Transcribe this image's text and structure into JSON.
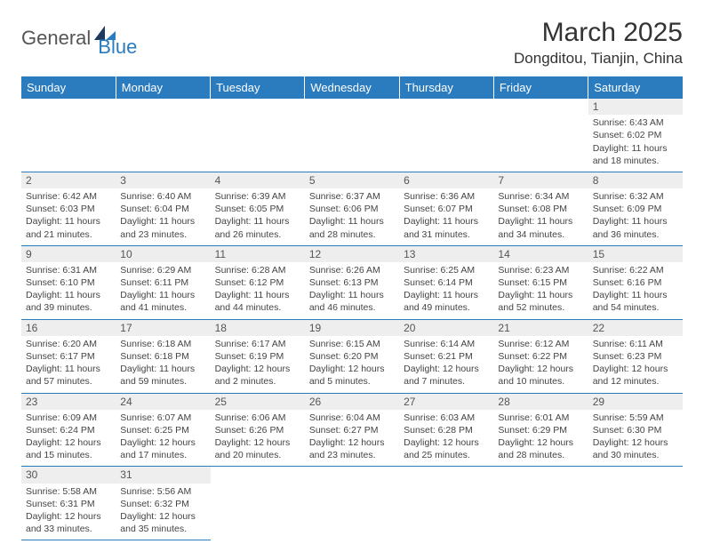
{
  "brand": {
    "general": "General",
    "blue": "Blue"
  },
  "title": "March 2025",
  "location": "Dongditou, Tianjin, China",
  "colors": {
    "header_bg": "#2b7bbf",
    "header_text": "#ffffff",
    "border": "#2b7bbf",
    "daynum_bg": "#eeeeee",
    "body_text": "#444444"
  },
  "weekdays": [
    "Sunday",
    "Monday",
    "Tuesday",
    "Wednesday",
    "Thursday",
    "Friday",
    "Saturday"
  ],
  "weeks": [
    [
      {
        "n": "",
        "e": true
      },
      {
        "n": "",
        "e": true
      },
      {
        "n": "",
        "e": true
      },
      {
        "n": "",
        "e": true
      },
      {
        "n": "",
        "e": true
      },
      {
        "n": "",
        "e": true
      },
      {
        "n": "1",
        "sr": "Sunrise: 6:43 AM",
        "ss": "Sunset: 6:02 PM",
        "d1": "Daylight: 11 hours",
        "d2": "and 18 minutes."
      }
    ],
    [
      {
        "n": "2",
        "sr": "Sunrise: 6:42 AM",
        "ss": "Sunset: 6:03 PM",
        "d1": "Daylight: 11 hours",
        "d2": "and 21 minutes."
      },
      {
        "n": "3",
        "sr": "Sunrise: 6:40 AM",
        "ss": "Sunset: 6:04 PM",
        "d1": "Daylight: 11 hours",
        "d2": "and 23 minutes."
      },
      {
        "n": "4",
        "sr": "Sunrise: 6:39 AM",
        "ss": "Sunset: 6:05 PM",
        "d1": "Daylight: 11 hours",
        "d2": "and 26 minutes."
      },
      {
        "n": "5",
        "sr": "Sunrise: 6:37 AM",
        "ss": "Sunset: 6:06 PM",
        "d1": "Daylight: 11 hours",
        "d2": "and 28 minutes."
      },
      {
        "n": "6",
        "sr": "Sunrise: 6:36 AM",
        "ss": "Sunset: 6:07 PM",
        "d1": "Daylight: 11 hours",
        "d2": "and 31 minutes."
      },
      {
        "n": "7",
        "sr": "Sunrise: 6:34 AM",
        "ss": "Sunset: 6:08 PM",
        "d1": "Daylight: 11 hours",
        "d2": "and 34 minutes."
      },
      {
        "n": "8",
        "sr": "Sunrise: 6:32 AM",
        "ss": "Sunset: 6:09 PM",
        "d1": "Daylight: 11 hours",
        "d2": "and 36 minutes."
      }
    ],
    [
      {
        "n": "9",
        "sr": "Sunrise: 6:31 AM",
        "ss": "Sunset: 6:10 PM",
        "d1": "Daylight: 11 hours",
        "d2": "and 39 minutes."
      },
      {
        "n": "10",
        "sr": "Sunrise: 6:29 AM",
        "ss": "Sunset: 6:11 PM",
        "d1": "Daylight: 11 hours",
        "d2": "and 41 minutes."
      },
      {
        "n": "11",
        "sr": "Sunrise: 6:28 AM",
        "ss": "Sunset: 6:12 PM",
        "d1": "Daylight: 11 hours",
        "d2": "and 44 minutes."
      },
      {
        "n": "12",
        "sr": "Sunrise: 6:26 AM",
        "ss": "Sunset: 6:13 PM",
        "d1": "Daylight: 11 hours",
        "d2": "and 46 minutes."
      },
      {
        "n": "13",
        "sr": "Sunrise: 6:25 AM",
        "ss": "Sunset: 6:14 PM",
        "d1": "Daylight: 11 hours",
        "d2": "and 49 minutes."
      },
      {
        "n": "14",
        "sr": "Sunrise: 6:23 AM",
        "ss": "Sunset: 6:15 PM",
        "d1": "Daylight: 11 hours",
        "d2": "and 52 minutes."
      },
      {
        "n": "15",
        "sr": "Sunrise: 6:22 AM",
        "ss": "Sunset: 6:16 PM",
        "d1": "Daylight: 11 hours",
        "d2": "and 54 minutes."
      }
    ],
    [
      {
        "n": "16",
        "sr": "Sunrise: 6:20 AM",
        "ss": "Sunset: 6:17 PM",
        "d1": "Daylight: 11 hours",
        "d2": "and 57 minutes."
      },
      {
        "n": "17",
        "sr": "Sunrise: 6:18 AM",
        "ss": "Sunset: 6:18 PM",
        "d1": "Daylight: 11 hours",
        "d2": "and 59 minutes."
      },
      {
        "n": "18",
        "sr": "Sunrise: 6:17 AM",
        "ss": "Sunset: 6:19 PM",
        "d1": "Daylight: 12 hours",
        "d2": "and 2 minutes."
      },
      {
        "n": "19",
        "sr": "Sunrise: 6:15 AM",
        "ss": "Sunset: 6:20 PM",
        "d1": "Daylight: 12 hours",
        "d2": "and 5 minutes."
      },
      {
        "n": "20",
        "sr": "Sunrise: 6:14 AM",
        "ss": "Sunset: 6:21 PM",
        "d1": "Daylight: 12 hours",
        "d2": "and 7 minutes."
      },
      {
        "n": "21",
        "sr": "Sunrise: 6:12 AM",
        "ss": "Sunset: 6:22 PM",
        "d1": "Daylight: 12 hours",
        "d2": "and 10 minutes."
      },
      {
        "n": "22",
        "sr": "Sunrise: 6:11 AM",
        "ss": "Sunset: 6:23 PM",
        "d1": "Daylight: 12 hours",
        "d2": "and 12 minutes."
      }
    ],
    [
      {
        "n": "23",
        "sr": "Sunrise: 6:09 AM",
        "ss": "Sunset: 6:24 PM",
        "d1": "Daylight: 12 hours",
        "d2": "and 15 minutes."
      },
      {
        "n": "24",
        "sr": "Sunrise: 6:07 AM",
        "ss": "Sunset: 6:25 PM",
        "d1": "Daylight: 12 hours",
        "d2": "and 17 minutes."
      },
      {
        "n": "25",
        "sr": "Sunrise: 6:06 AM",
        "ss": "Sunset: 6:26 PM",
        "d1": "Daylight: 12 hours",
        "d2": "and 20 minutes."
      },
      {
        "n": "26",
        "sr": "Sunrise: 6:04 AM",
        "ss": "Sunset: 6:27 PM",
        "d1": "Daylight: 12 hours",
        "d2": "and 23 minutes."
      },
      {
        "n": "27",
        "sr": "Sunrise: 6:03 AM",
        "ss": "Sunset: 6:28 PM",
        "d1": "Daylight: 12 hours",
        "d2": "and 25 minutes."
      },
      {
        "n": "28",
        "sr": "Sunrise: 6:01 AM",
        "ss": "Sunset: 6:29 PM",
        "d1": "Daylight: 12 hours",
        "d2": "and 28 minutes."
      },
      {
        "n": "29",
        "sr": "Sunrise: 5:59 AM",
        "ss": "Sunset: 6:30 PM",
        "d1": "Daylight: 12 hours",
        "d2": "and 30 minutes."
      }
    ],
    [
      {
        "n": "30",
        "sr": "Sunrise: 5:58 AM",
        "ss": "Sunset: 6:31 PM",
        "d1": "Daylight: 12 hours",
        "d2": "and 33 minutes."
      },
      {
        "n": "31",
        "sr": "Sunrise: 5:56 AM",
        "ss": "Sunset: 6:32 PM",
        "d1": "Daylight: 12 hours",
        "d2": "and 35 minutes."
      },
      {
        "n": "",
        "e": true
      },
      {
        "n": "",
        "e": true
      },
      {
        "n": "",
        "e": true
      },
      {
        "n": "",
        "e": true
      },
      {
        "n": "",
        "e": true
      }
    ]
  ]
}
